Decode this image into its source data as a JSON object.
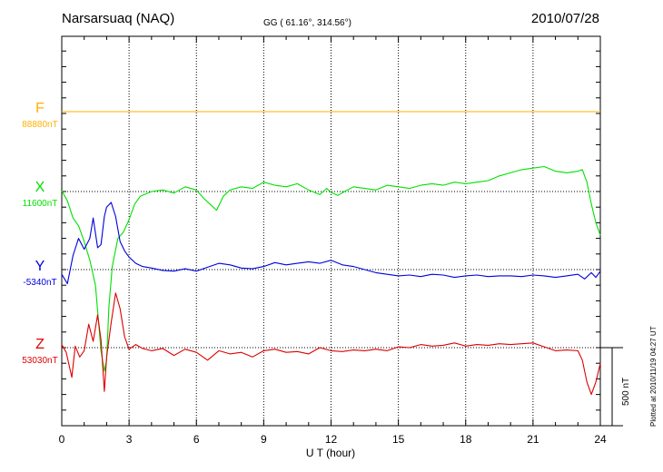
{
  "header": {
    "station": "Narsarsuaq (NAQ)",
    "coords": "GG ( 61.16°, 314.56°)",
    "date": "2010/07/28"
  },
  "plotted": "Plotted at 2010/11/19 04:27 UT",
  "scale_label": "500 nT",
  "colors": {
    "F": "#ffb000",
    "X": "#00e000",
    "Y": "#0000dd",
    "Z": "#dd0000",
    "axis": "#000000",
    "grid": "#000000"
  },
  "chart_data": {
    "type": "line",
    "title": "Narsarsuaq (NAQ)",
    "xlabel": "U T (hour)",
    "xlim": [
      0,
      24
    ],
    "xticks": [
      0,
      3,
      6,
      9,
      12,
      15,
      18,
      21,
      24
    ],
    "xtick_labels": [
      "0",
      "3",
      "6",
      "9",
      "12",
      "15",
      "18",
      "21",
      "24"
    ],
    "grid": "vertical dotted every 3 hours",
    "scale_bar_nT": 500,
    "series": [
      {
        "name": "F",
        "baseline_label": "88880nT",
        "baseline_nT": 88880,
        "x": [
          0,
          24
        ],
        "y": [
          0,
          0
        ]
      },
      {
        "name": "X",
        "baseline_label": "11600nT",
        "baseline_nT": 11600,
        "x": [
          0,
          0.25,
          0.5,
          0.75,
          1.0,
          1.25,
          1.5,
          1.75,
          1.9,
          2.0,
          2.1,
          2.25,
          2.5,
          2.75,
          3.0,
          3.25,
          3.5,
          4.0,
          4.5,
          5.0,
          5.5,
          6.0,
          6.3,
          6.6,
          6.9,
          7.2,
          7.5,
          8.0,
          8.5,
          9.0,
          9.5,
          10.0,
          10.5,
          11.0,
          11.5,
          11.8,
          12.0,
          12.3,
          12.6,
          13.0,
          13.5,
          14.0,
          14.5,
          15.0,
          15.5,
          16.0,
          16.5,
          17.0,
          17.5,
          18.0,
          18.5,
          19.0,
          19.5,
          20.0,
          20.5,
          21.0,
          21.5,
          22.0,
          22.5,
          23.0,
          23.2,
          23.4,
          23.6,
          23.8,
          24.0
        ],
        "y": [
          5,
          -60,
          -170,
          -220,
          -320,
          -440,
          -600,
          -1020,
          -1150,
          -1080,
          -740,
          -480,
          -300,
          -260,
          -180,
          -80,
          -30,
          0,
          10,
          -10,
          30,
          10,
          -40,
          -80,
          -120,
          -30,
          10,
          30,
          20,
          60,
          40,
          30,
          50,
          10,
          -20,
          20,
          -5,
          -25,
          0,
          30,
          20,
          10,
          40,
          30,
          20,
          40,
          50,
          40,
          60,
          50,
          60,
          70,
          100,
          120,
          140,
          150,
          160,
          130,
          120,
          130,
          140,
          60,
          -80,
          -200,
          -280
        ]
      },
      {
        "name": "Y",
        "baseline_label": "-5340nT",
        "baseline_nT": -5340,
        "x": [
          0,
          0.25,
          0.5,
          0.75,
          1.0,
          1.25,
          1.4,
          1.6,
          1.75,
          1.9,
          2.0,
          2.2,
          2.4,
          2.6,
          2.8,
          3.0,
          3.3,
          3.6,
          4.0,
          4.5,
          5.0,
          5.5,
          6.0,
          6.5,
          7.0,
          7.5,
          8.0,
          8.5,
          9.0,
          9.5,
          10.0,
          10.5,
          11.0,
          11.5,
          12.0,
          12.5,
          13.0,
          13.5,
          14.0,
          14.5,
          15.0,
          15.5,
          16.0,
          16.5,
          17.0,
          17.5,
          18.0,
          18.5,
          19.0,
          19.5,
          20.0,
          20.5,
          21.0,
          21.5,
          22.0,
          22.5,
          23.0,
          23.3,
          23.6,
          23.8,
          24.0
        ],
        "y": [
          -30,
          -90,
          90,
          200,
          130,
          200,
          330,
          140,
          160,
          340,
          400,
          430,
          340,
          180,
          120,
          80,
          40,
          20,
          10,
          -5,
          -10,
          5,
          -10,
          15,
          40,
          30,
          10,
          5,
          20,
          45,
          30,
          40,
          50,
          40,
          60,
          30,
          20,
          0,
          -20,
          -30,
          -40,
          -35,
          -45,
          -30,
          -35,
          -50,
          -40,
          -35,
          -45,
          -40,
          -40,
          -45,
          -35,
          -40,
          -50,
          -40,
          -30,
          -60,
          -20,
          -50,
          -10
        ]
      },
      {
        "name": "Z",
        "baseline_label": "53030nT",
        "baseline_nT": 53030,
        "x": [
          0,
          0.2,
          0.45,
          0.6,
          0.8,
          1.0,
          1.2,
          1.4,
          1.6,
          1.75,
          1.9,
          2.0,
          2.2,
          2.4,
          2.6,
          2.8,
          3.0,
          3.3,
          3.6,
          4.0,
          4.5,
          5.0,
          5.5,
          6.0,
          6.5,
          7.0,
          7.5,
          8.0,
          8.5,
          9.0,
          9.5,
          10.0,
          10.5,
          11.0,
          11.5,
          12.0,
          12.5,
          13.0,
          13.5,
          14.0,
          14.5,
          15.0,
          15.5,
          16.0,
          16.5,
          17.0,
          17.5,
          18.0,
          18.5,
          19.0,
          19.5,
          20.0,
          20.5,
          21.0,
          21.5,
          22.0,
          22.5,
          23.0,
          23.2,
          23.4,
          23.6,
          23.8,
          24.0
        ],
        "y": [
          20,
          -30,
          -190,
          10,
          -60,
          -20,
          150,
          40,
          210,
          50,
          -280,
          -60,
          160,
          350,
          250,
          70,
          -10,
          20,
          -5,
          -20,
          -5,
          -50,
          -10,
          -30,
          -80,
          -20,
          -40,
          -30,
          -60,
          -20,
          -10,
          -30,
          -25,
          -40,
          0,
          -20,
          -25,
          -15,
          -20,
          -10,
          -20,
          5,
          0,
          20,
          10,
          15,
          30,
          10,
          20,
          15,
          25,
          20,
          25,
          30,
          5,
          -20,
          -15,
          -20,
          -80,
          -220,
          -300,
          -220,
          -100
        ]
      }
    ]
  }
}
